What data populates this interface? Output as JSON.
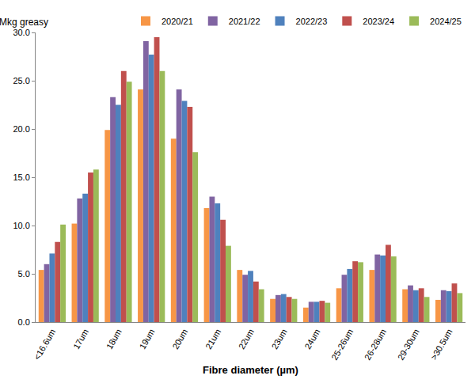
{
  "chart_data": {
    "type": "bar",
    "y_label": "Mkg greasy",
    "x_label": "Fibre diameter (µm)",
    "categories": [
      "<16.6um",
      "17um",
      "18um",
      "19um",
      "20um",
      "21um",
      "22um",
      "23um",
      "24um",
      "25-26um",
      "26-28um",
      "29-30um",
      ">30.5um"
    ],
    "series": [
      {
        "name": "2020/21",
        "color": "#f79646",
        "values": [
          5.4,
          10.2,
          19.9,
          24.1,
          19.0,
          11.8,
          5.4,
          2.4,
          1.5,
          3.5,
          5.4,
          3.4,
          2.3
        ]
      },
      {
        "name": "2021/22",
        "color": "#8064a2",
        "values": [
          6.0,
          12.8,
          23.3,
          29.1,
          24.1,
          13.0,
          4.9,
          2.8,
          2.1,
          4.9,
          7.0,
          3.8,
          3.3
        ]
      },
      {
        "name": "2022/23",
        "color": "#4f81bd",
        "values": [
          7.1,
          13.3,
          22.5,
          27.7,
          22.9,
          12.3,
          5.3,
          2.9,
          2.1,
          5.5,
          6.9,
          3.3,
          3.2
        ]
      },
      {
        "name": "2023/24",
        "color": "#c0504d",
        "values": [
          8.3,
          15.5,
          26.0,
          29.5,
          22.3,
          10.6,
          4.2,
          2.6,
          2.2,
          6.3,
          8.0,
          3.5,
          4.0
        ]
      },
      {
        "name": "2024/25",
        "color": "#9bbb59",
        "values": [
          10.1,
          15.8,
          24.9,
          26.0,
          17.6,
          7.9,
          3.4,
          2.4,
          2.0,
          6.2,
          6.8,
          2.6,
          3.0
        ]
      }
    ],
    "ylim": [
      0,
      30
    ],
    "yticks": [
      {
        "value": 0,
        "label": "0.0"
      },
      {
        "value": 5,
        "label": "5.0"
      },
      {
        "value": 10,
        "label": "10.0"
      },
      {
        "value": 15,
        "label": "15.0"
      },
      {
        "value": 20,
        "label": "20.0"
      },
      {
        "value": 25,
        "label": "25.0"
      },
      {
        "value": 30,
        "label": "30.0"
      }
    ],
    "grid": false,
    "legend": "top right"
  }
}
